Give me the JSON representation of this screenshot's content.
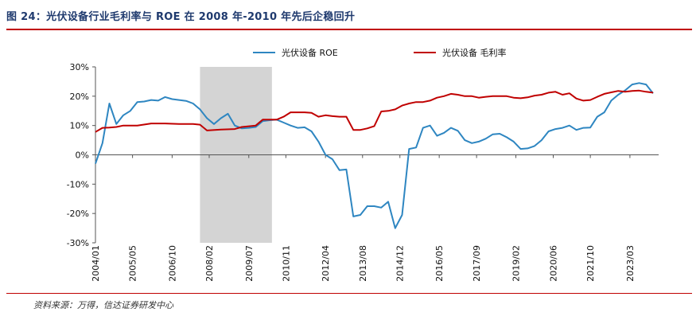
{
  "header": {
    "title": "图 24：光伏设备行业毛利率与 ROE 在 2008 年-2010 年先后企稳回升"
  },
  "footer": {
    "source": "资料来源：万得，信达证券研发中心"
  },
  "chart_data": {
    "type": "line",
    "title": "图 24：光伏设备行业毛利率与 ROE 在 2008 年-2010 年先后企稳回升",
    "xlabel": "",
    "ylabel": "",
    "ylim": [
      -30,
      30
    ],
    "y_ticks": [
      "30%",
      "20%",
      "10%",
      "0%",
      "-10%",
      "-20%",
      "-30%"
    ],
    "y_tick_values": [
      30,
      20,
      10,
      0,
      -10,
      -20,
      -30
    ],
    "x_ticks": [
      "2004/01",
      "2005/05",
      "2006/10",
      "2008/02",
      "2009/07",
      "2010/11",
      "2012/04",
      "2013/08",
      "2014/12",
      "2016/05",
      "2017/09",
      "2019/02",
      "2020/06",
      "2021/10",
      "2023/03"
    ],
    "x_tick_values": [
      2004.0,
      2005.33,
      2006.75,
      2008.08,
      2009.5,
      2010.83,
      2012.25,
      2013.58,
      2014.92,
      2016.33,
      2017.67,
      2019.08,
      2020.42,
      2021.75,
      2023.17
    ],
    "xlim": [
      2004.0,
      2024.2
    ],
    "shaded_region": {
      "start": 2007.75,
      "end": 2010.33
    },
    "legend_position": "top-center",
    "series": [
      {
        "name": "光伏设备 ROE",
        "color": "#2e86c1",
        "points": [
          [
            2004.0,
            -3
          ],
          [
            2004.25,
            4
          ],
          [
            2004.5,
            17.5
          ],
          [
            2004.75,
            10.5
          ],
          [
            2005.0,
            13.5
          ],
          [
            2005.25,
            15
          ],
          [
            2005.5,
            18
          ],
          [
            2005.75,
            18.2
          ],
          [
            2006.0,
            18.7
          ],
          [
            2006.25,
            18.5
          ],
          [
            2006.5,
            19.7
          ],
          [
            2006.75,
            19
          ],
          [
            2007.0,
            18.7
          ],
          [
            2007.25,
            18.4
          ],
          [
            2007.5,
            17.5
          ],
          [
            2007.75,
            15.5
          ],
          [
            2008.0,
            12.5
          ],
          [
            2008.25,
            10.5
          ],
          [
            2008.5,
            12.5
          ],
          [
            2008.75,
            14
          ],
          [
            2009.0,
            10
          ],
          [
            2009.25,
            9
          ],
          [
            2009.5,
            9.2
          ],
          [
            2009.75,
            9.5
          ],
          [
            2010.0,
            11.5
          ],
          [
            2010.25,
            11.8
          ],
          [
            2010.5,
            12
          ],
          [
            2010.75,
            11
          ],
          [
            2011.0,
            10
          ],
          [
            2011.25,
            9.2
          ],
          [
            2011.5,
            9.4
          ],
          [
            2011.75,
            8
          ],
          [
            2012.0,
            4.5
          ],
          [
            2012.25,
            0
          ],
          [
            2012.5,
            -1.5
          ],
          [
            2012.75,
            -5.2
          ],
          [
            2013.0,
            -5
          ],
          [
            2013.25,
            -21
          ],
          [
            2013.5,
            -20.5
          ],
          [
            2013.75,
            -17.5
          ],
          [
            2014.0,
            -17.5
          ],
          [
            2014.25,
            -18
          ],
          [
            2014.5,
            -16
          ],
          [
            2014.75,
            -25
          ],
          [
            2015.0,
            -20.5
          ],
          [
            2015.25,
            2
          ],
          [
            2015.5,
            2.5
          ],
          [
            2015.75,
            9.2
          ],
          [
            2016.0,
            10
          ],
          [
            2016.25,
            6.5
          ],
          [
            2016.5,
            7.5
          ],
          [
            2016.75,
            9.2
          ],
          [
            2017.0,
            8.2
          ],
          [
            2017.25,
            5
          ],
          [
            2017.5,
            4
          ],
          [
            2017.75,
            4.5
          ],
          [
            2018.0,
            5.5
          ],
          [
            2018.25,
            7
          ],
          [
            2018.5,
            7.2
          ],
          [
            2018.75,
            6
          ],
          [
            2019.0,
            4.5
          ],
          [
            2019.25,
            2
          ],
          [
            2019.5,
            2.2
          ],
          [
            2019.75,
            3
          ],
          [
            2020.0,
            5
          ],
          [
            2020.25,
            8
          ],
          [
            2020.5,
            8.8
          ],
          [
            2020.75,
            9.2
          ],
          [
            2021.0,
            10
          ],
          [
            2021.25,
            8.5
          ],
          [
            2021.5,
            9.2
          ],
          [
            2021.75,
            9.3
          ],
          [
            2022.0,
            13
          ],
          [
            2022.25,
            14.5
          ],
          [
            2022.5,
            18.5
          ],
          [
            2022.75,
            20.5
          ],
          [
            2023.0,
            22
          ],
          [
            2023.25,
            24
          ],
          [
            2023.5,
            24.5
          ],
          [
            2023.75,
            24
          ],
          [
            2024.0,
            21
          ]
        ]
      },
      {
        "name": "光伏设备 毛利率",
        "color": "#c00000",
        "points": [
          [
            2004.0,
            7.8
          ],
          [
            2004.25,
            9.2
          ],
          [
            2004.5,
            9.3
          ],
          [
            2004.75,
            9.5
          ],
          [
            2005.0,
            10
          ],
          [
            2005.5,
            10
          ],
          [
            2006.0,
            10.7
          ],
          [
            2006.5,
            10.7
          ],
          [
            2007.0,
            10.5
          ],
          [
            2007.5,
            10.5
          ],
          [
            2007.75,
            10.3
          ],
          [
            2008.0,
            8.3
          ],
          [
            2008.5,
            8.6
          ],
          [
            2009.0,
            8.8
          ],
          [
            2009.25,
            9.5
          ],
          [
            2009.75,
            10
          ],
          [
            2010.0,
            12
          ],
          [
            2010.5,
            12
          ],
          [
            2010.75,
            13
          ],
          [
            2011.0,
            14.5
          ],
          [
            2011.5,
            14.5
          ],
          [
            2011.75,
            14.3
          ],
          [
            2012.0,
            13
          ],
          [
            2012.25,
            13.5
          ],
          [
            2012.5,
            13.2
          ],
          [
            2012.75,
            13
          ],
          [
            2013.0,
            13
          ],
          [
            2013.25,
            8.5
          ],
          [
            2013.5,
            8.5
          ],
          [
            2013.75,
            9
          ],
          [
            2014.0,
            9.8
          ],
          [
            2014.25,
            14.8
          ],
          [
            2014.5,
            15
          ],
          [
            2014.75,
            15.5
          ],
          [
            2015.0,
            16.8
          ],
          [
            2015.25,
            17.5
          ],
          [
            2015.5,
            18
          ],
          [
            2015.75,
            18
          ],
          [
            2016.0,
            18.5
          ],
          [
            2016.25,
            19.5
          ],
          [
            2016.5,
            20
          ],
          [
            2016.75,
            20.8
          ],
          [
            2017.0,
            20.5
          ],
          [
            2017.25,
            20
          ],
          [
            2017.5,
            20
          ],
          [
            2017.75,
            19.5
          ],
          [
            2018.0,
            19.8
          ],
          [
            2018.25,
            20
          ],
          [
            2018.5,
            20
          ],
          [
            2018.75,
            20
          ],
          [
            2019.0,
            19.5
          ],
          [
            2019.25,
            19.3
          ],
          [
            2019.5,
            19.6
          ],
          [
            2019.75,
            20.2
          ],
          [
            2020.0,
            20.5
          ],
          [
            2020.25,
            21.2
          ],
          [
            2020.5,
            21.5
          ],
          [
            2020.75,
            20.5
          ],
          [
            2021.0,
            21
          ],
          [
            2021.25,
            19.2
          ],
          [
            2021.5,
            18.5
          ],
          [
            2021.75,
            18.7
          ],
          [
            2022.0,
            19.8
          ],
          [
            2022.25,
            20.8
          ],
          [
            2022.5,
            21.3
          ],
          [
            2022.75,
            21.8
          ],
          [
            2023.0,
            21.5
          ],
          [
            2023.25,
            21.8
          ],
          [
            2023.5,
            21.9
          ],
          [
            2023.75,
            21.5
          ],
          [
            2024.0,
            21.2
          ]
        ]
      }
    ]
  }
}
